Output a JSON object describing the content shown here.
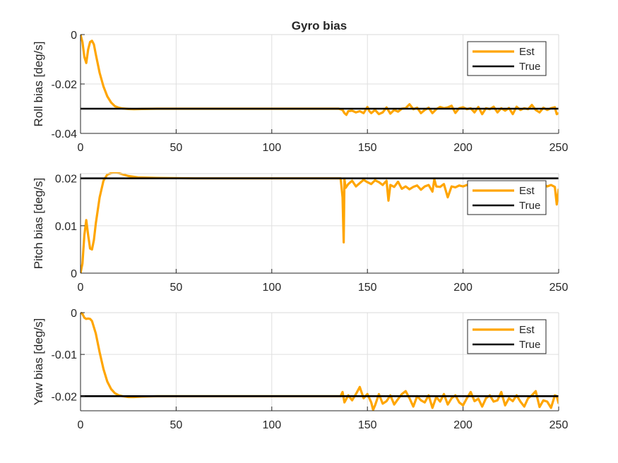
{
  "figure": {
    "title": "Gyro bias"
  },
  "chart_data": [
    {
      "type": "line",
      "title": "Gyro bias",
      "xlabel": "",
      "ylabel": "Roll bias [deg/s]",
      "xlim": [
        0,
        250
      ],
      "ylim": [
        -0.04,
        0
      ],
      "xticks": [
        0,
        50,
        100,
        150,
        200,
        250
      ],
      "yticks": [
        -0.04,
        -0.02,
        0
      ],
      "ytick_labels": [
        "-0.04",
        "-0.02",
        "0"
      ],
      "grid": true,
      "legend": {
        "placement": "top-right"
      },
      "series": [
        {
          "name": "Est",
          "color": "#FFA500",
          "x": [
            0,
            1,
            2,
            3,
            4,
            5,
            6,
            7,
            8,
            10,
            12,
            14,
            16,
            18,
            20,
            22,
            25,
            28,
            32,
            40,
            60,
            80,
            100,
            120,
            135,
            137,
            138,
            139,
            140,
            142,
            144,
            146,
            148,
            150,
            151,
            152,
            154,
            156,
            158,
            160,
            162,
            164,
            166,
            168,
            170,
            172,
            174,
            176,
            178,
            180,
            182,
            184,
            186,
            188,
            190,
            192,
            194,
            196,
            198,
            200,
            202,
            204,
            206,
            208,
            210,
            212,
            214,
            216,
            218,
            220,
            222,
            224,
            226,
            228,
            230,
            232,
            234,
            236,
            238,
            240,
            242,
            244,
            246,
            248,
            249,
            250
          ],
          "y": [
            0,
            -0.003,
            -0.009,
            -0.0115,
            -0.006,
            -0.003,
            -0.0025,
            -0.004,
            -0.008,
            -0.0155,
            -0.021,
            -0.025,
            -0.0275,
            -0.029,
            -0.0296,
            -0.0299,
            -0.0301,
            -0.0302,
            -0.0301,
            -0.03,
            -0.03,
            -0.03,
            -0.03,
            -0.03,
            -0.03,
            -0.0305,
            -0.0318,
            -0.0325,
            -0.031,
            -0.0308,
            -0.0315,
            -0.031,
            -0.0318,
            -0.0293,
            -0.031,
            -0.0318,
            -0.0305,
            -0.0322,
            -0.0315,
            -0.0295,
            -0.032,
            -0.0305,
            -0.0312,
            -0.03,
            -0.0298,
            -0.0282,
            -0.0302,
            -0.0296,
            -0.0318,
            -0.0305,
            -0.0296,
            -0.0318,
            -0.0302,
            -0.0293,
            -0.0298,
            -0.0295,
            -0.0288,
            -0.0317,
            -0.0298,
            -0.0294,
            -0.0302,
            -0.0298,
            -0.0315,
            -0.0293,
            -0.0322,
            -0.0298,
            -0.0302,
            -0.0292,
            -0.0315,
            -0.0298,
            -0.0308,
            -0.0297,
            -0.0322,
            -0.0292,
            -0.0305,
            -0.0298,
            -0.0302,
            -0.0285,
            -0.0305,
            -0.0315,
            -0.0296,
            -0.0305,
            -0.0298,
            -0.0294,
            -0.0322,
            -0.0318
          ]
        },
        {
          "name": "True",
          "color": "#000000",
          "x": [
            0,
            250
          ],
          "y": [
            -0.03,
            -0.03
          ]
        }
      ]
    },
    {
      "type": "line",
      "title": "",
      "xlabel": "",
      "ylabel": "Pitch bias [deg/s]",
      "xlim": [
        0,
        250
      ],
      "ylim": [
        0,
        0.021
      ],
      "xticks": [
        0,
        50,
        100,
        150,
        200,
        250
      ],
      "yticks": [
        0,
        0.01,
        0.02
      ],
      "ytick_labels": [
        "0",
        "0.01",
        "0.02"
      ],
      "grid": true,
      "legend": {
        "placement": "top-right"
      },
      "series": [
        {
          "name": "Est",
          "color": "#FFA500",
          "x": [
            0,
            1,
            2,
            3,
            4,
            5,
            6,
            7,
            8,
            10,
            12,
            14,
            16,
            18,
            20,
            25,
            30,
            40,
            60,
            80,
            100,
            120,
            136,
            137,
            137.6,
            138,
            138.6,
            140,
            142,
            144,
            146,
            148,
            150,
            152,
            154,
            156,
            158,
            160,
            161,
            162,
            164,
            166,
            168,
            170,
            172,
            174,
            176,
            178,
            180,
            182,
            184,
            185,
            186,
            188,
            190,
            192,
            194,
            196,
            198,
            200,
            202,
            204,
            206,
            208,
            210,
            212,
            214,
            216,
            218,
            220,
            222,
            224,
            226,
            228,
            230,
            232,
            234,
            236,
            238,
            240,
            242,
            244,
            246,
            248,
            249,
            250
          ],
          "y": [
            0,
            0.002,
            0.008,
            0.0112,
            0.008,
            0.0052,
            0.005,
            0.007,
            0.0105,
            0.016,
            0.0195,
            0.0208,
            0.0211,
            0.0212,
            0.0211,
            0.0205,
            0.0202,
            0.0201,
            0.02,
            0.02,
            0.02,
            0.02,
            0.02,
            0.016,
            0.0065,
            0.0198,
            0.018,
            0.0188,
            0.0195,
            0.0183,
            0.019,
            0.0197,
            0.0192,
            0.0188,
            0.0196,
            0.0192,
            0.0186,
            0.0195,
            0.0153,
            0.0186,
            0.0182,
            0.0193,
            0.0178,
            0.0183,
            0.0177,
            0.0182,
            0.0185,
            0.0176,
            0.0183,
            0.0186,
            0.0172,
            0.0198,
            0.0183,
            0.0182,
            0.0188,
            0.016,
            0.0183,
            0.0181,
            0.0185,
            0.0183,
            0.0186,
            0.0182,
            0.0184,
            0.0176,
            0.0186,
            0.0183,
            0.0187,
            0.0182,
            0.0186,
            0.0183,
            0.0187,
            0.0184,
            0.0156,
            0.0186,
            0.0184,
            0.0183,
            0.0188,
            0.0182,
            0.0186,
            0.0184,
            0.0188,
            0.0183,
            0.0186,
            0.0182,
            0.0145,
            0.0178
          ]
        },
        {
          "name": "True",
          "color": "#000000",
          "x": [
            0,
            250
          ],
          "y": [
            0.02,
            0.02
          ]
        }
      ]
    },
    {
      "type": "line",
      "title": "",
      "xlabel": "",
      "ylabel": "Yaw bias [deg/s]",
      "xlim": [
        0,
        250
      ],
      "ylim": [
        -0.0235,
        0
      ],
      "xticks": [
        0,
        50,
        100,
        150,
        200,
        250
      ],
      "yticks": [
        -0.02,
        -0.01,
        0
      ],
      "ytick_labels": [
        "-0.02",
        "-0.01",
        "0"
      ],
      "grid": true,
      "legend": {
        "placement": "top-right"
      },
      "series": [
        {
          "name": "Est",
          "color": "#FFA500",
          "x": [
            0,
            1,
            2,
            3,
            4,
            5,
            6,
            7,
            8,
            10,
            12,
            14,
            16,
            18,
            20,
            22,
            25,
            28,
            32,
            40,
            60,
            80,
            100,
            120,
            136,
            137,
            138,
            140,
            142,
            144,
            146,
            148,
            150,
            152,
            153,
            154,
            156,
            158,
            160,
            162,
            164,
            166,
            168,
            170,
            172,
            174,
            176,
            178,
            180,
            182,
            184,
            186,
            188,
            190,
            192,
            194,
            196,
            198,
            200,
            202,
            204,
            206,
            208,
            210,
            212,
            214,
            216,
            218,
            220,
            222,
            224,
            226,
            228,
            230,
            232,
            234,
            236,
            238,
            240,
            242,
            244,
            246,
            248,
            249,
            250
          ],
          "y": [
            0,
            -0.0003,
            -0.0012,
            -0.0015,
            -0.0014,
            -0.0015,
            -0.002,
            -0.0035,
            -0.005,
            -0.0095,
            -0.0135,
            -0.0165,
            -0.0183,
            -0.0193,
            -0.0198,
            -0.02,
            -0.0202,
            -0.0202,
            -0.0201,
            -0.02,
            -0.02,
            -0.02,
            -0.02,
            -0.02,
            -0.02,
            -0.019,
            -0.0215,
            -0.0198,
            -0.021,
            -0.0195,
            -0.0178,
            -0.0205,
            -0.0195,
            -0.0215,
            -0.0233,
            -0.0222,
            -0.0195,
            -0.0218,
            -0.0212,
            -0.0198,
            -0.022,
            -0.0207,
            -0.0195,
            -0.0188,
            -0.0205,
            -0.0225,
            -0.02,
            -0.021,
            -0.0215,
            -0.0198,
            -0.0228,
            -0.0202,
            -0.0213,
            -0.0195,
            -0.022,
            -0.0205,
            -0.0198,
            -0.0215,
            -0.0222,
            -0.0205,
            -0.019,
            -0.0212,
            -0.0206,
            -0.0225,
            -0.0205,
            -0.0198,
            -0.0213,
            -0.021,
            -0.019,
            -0.0222,
            -0.0205,
            -0.0212,
            -0.0198,
            -0.0213,
            -0.0225,
            -0.0205,
            -0.0198,
            -0.0188,
            -0.0226,
            -0.021,
            -0.0213,
            -0.0228,
            -0.0198,
            -0.02,
            -0.0218
          ]
        },
        {
          "name": "True",
          "color": "#000000",
          "x": [
            0,
            250
          ],
          "y": [
            -0.02,
            -0.02
          ]
        }
      ]
    }
  ]
}
